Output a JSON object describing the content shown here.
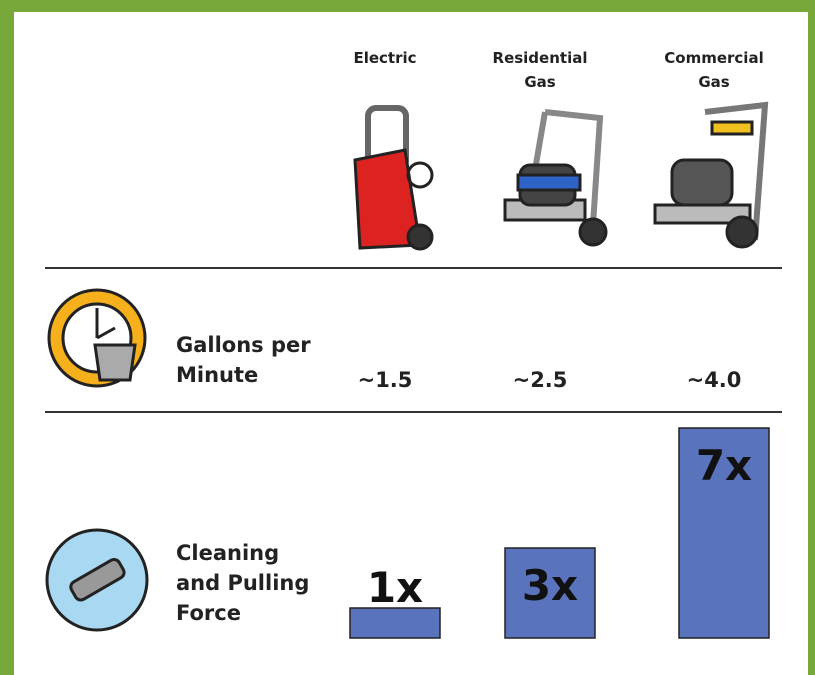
{
  "columns": [
    "Electric",
    "Residential Gas",
    "Commercial Gas"
  ],
  "rows": [
    {
      "label": "Gallons per Minute",
      "values": [
        "~1.5",
        "~2.5",
        "~4.0"
      ]
    },
    {
      "label": "Cleaning and Pulling Force",
      "values": [
        1,
        3,
        7
      ],
      "value_labels": [
        "1x",
        "3x",
        "7x"
      ],
      "color": "#5a73bd"
    }
  ]
}
